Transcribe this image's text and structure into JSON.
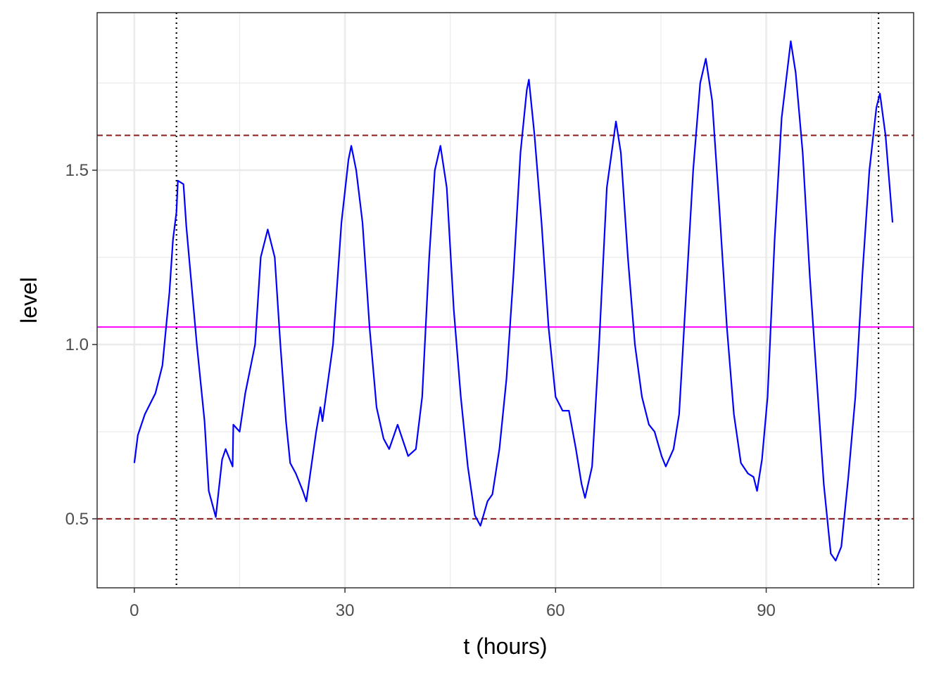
{
  "chart_data": {
    "type": "line",
    "x_label": "t (hours)",
    "y_label": "level",
    "xlim": [
      -5.3,
      111
    ],
    "ylim": [
      0.302,
      1.952
    ],
    "xticks": [
      0,
      30,
      60,
      90
    ],
    "yticks": [
      0.5,
      {
        "value": 1,
        "label": "1.0"
      },
      1.5
    ],
    "x_minor_grid": [
      15,
      45,
      75,
      105
    ],
    "y_minor_grid": [
      0.75,
      1.25,
      1.75
    ],
    "grid": true,
    "color": "#0000ff",
    "hlines": [
      {
        "value": 1.6,
        "color": "#8b1a1a",
        "style": "dashed"
      },
      {
        "value": 0.5,
        "color": "#8b1a1a",
        "style": "dashed"
      },
      {
        "value": 1.05,
        "color": "#ff00ff",
        "style": "solid"
      }
    ],
    "vlines": [
      {
        "value": 6,
        "color": "#000000",
        "style": "dotted"
      },
      {
        "value": 106,
        "color": "#000000",
        "style": "dotted"
      }
    ],
    "x": [
      0,
      0.5,
      1.5,
      2,
      3,
      4,
      5,
      5.5,
      6,
      6.2,
      7,
      7.4,
      8.9,
      10,
      10.6,
      11.6,
      12.5,
      13,
      14,
      14.1,
      15,
      15.8,
      17.2,
      18,
      19,
      20,
      20.8,
      21.6,
      22.2,
      23,
      24,
      24.5,
      25.9,
      26.5,
      26.8,
      28.3,
      29.5,
      30.5,
      30.9,
      31.6,
      32.5,
      33.5,
      34.5,
      35.5,
      36.3,
      37.5,
      39,
      40.1,
      41,
      42,
      42.8,
      43.6,
      44.5,
      45.5,
      46.5,
      47.5,
      48.5,
      49.3,
      50.3,
      51,
      52,
      53,
      54,
      55,
      55.9,
      56.2,
      57,
      58,
      59,
      60,
      61,
      61.9,
      62.9,
      63.7,
      64.2,
      65.2,
      66.2,
      67.3,
      68.6,
      69.3,
      70.3,
      71.3,
      72.3,
      73.3,
      74.1,
      75.1,
      75.7,
      76.8,
      77.6,
      78.6,
      79.6,
      80.6,
      81.4,
      82.3,
      83.3,
      84.4,
      85.4,
      86.4,
      87.4,
      88.2,
      88.7,
      89.4,
      90.2,
      91.2,
      92.2,
      93.5,
      94.2,
      95.2,
      96.2,
      97.2,
      98.2,
      99.2,
      99.9,
      100.7,
      101.7,
      102.7,
      103.7,
      104.7,
      105.7,
      106.2,
      107,
      108
    ],
    "values": [
      0.66,
      0.74,
      0.8,
      0.82,
      0.86,
      0.94,
      1.15,
      1.3,
      1.38,
      1.47,
      1.46,
      1.34,
      1.0,
      0.78,
      0.58,
      0.505,
      0.67,
      0.7,
      0.65,
      0.77,
      0.75,
      0.86,
      1.0,
      1.25,
      1.33,
      1.25,
      1.0,
      0.78,
      0.66,
      0.63,
      0.58,
      0.55,
      0.75,
      0.82,
      0.78,
      1.0,
      1.35,
      1.53,
      1.57,
      1.5,
      1.35,
      1.05,
      0.82,
      0.73,
      0.7,
      0.77,
      0.68,
      0.7,
      0.85,
      1.25,
      1.5,
      1.57,
      1.45,
      1.1,
      0.85,
      0.65,
      0.51,
      0.48,
      0.55,
      0.57,
      0.7,
      0.9,
      1.2,
      1.55,
      1.73,
      1.76,
      1.6,
      1.35,
      1.05,
      0.85,
      0.81,
      0.81,
      0.7,
      0.6,
      0.56,
      0.65,
      1.0,
      1.45,
      1.64,
      1.55,
      1.25,
      1.0,
      0.85,
      0.77,
      0.75,
      0.68,
      0.65,
      0.7,
      0.8,
      1.15,
      1.5,
      1.75,
      1.82,
      1.7,
      1.4,
      1.05,
      0.8,
      0.66,
      0.63,
      0.62,
      0.58,
      0.67,
      0.85,
      1.3,
      1.65,
      1.87,
      1.78,
      1.55,
      1.2,
      0.9,
      0.6,
      0.4,
      0.38,
      0.42,
      0.62,
      0.85,
      1.2,
      1.5,
      1.68,
      1.72,
      1.6,
      1.35
    ]
  }
}
